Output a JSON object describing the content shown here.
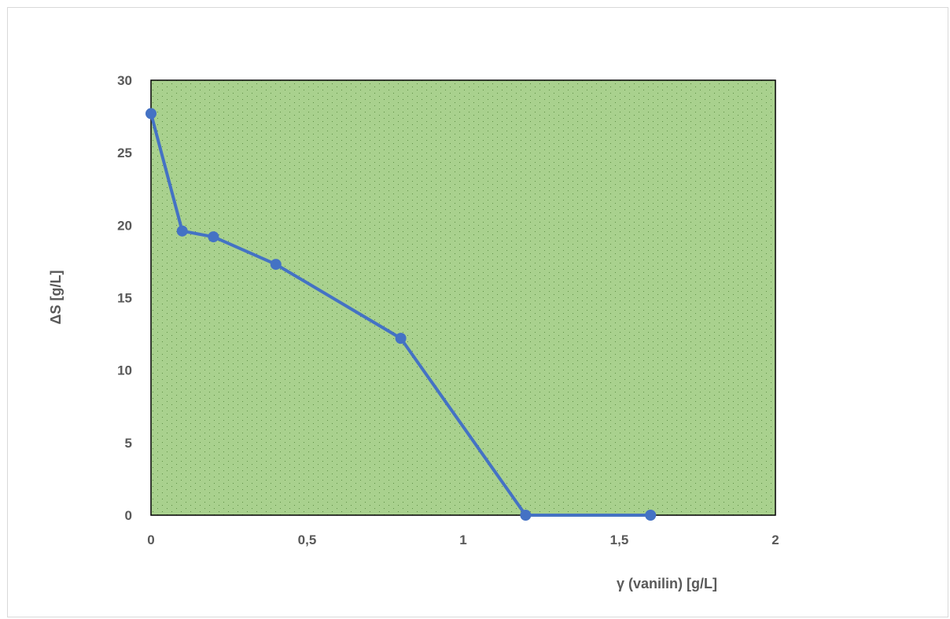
{
  "chart_data": {
    "type": "line",
    "title": "",
    "xlabel": "γ (vanilin) [g/L]",
    "ylabel": "ΔS [g/L]",
    "xlim": [
      0,
      2
    ],
    "ylim": [
      0,
      30
    ],
    "x_ticks": [
      0,
      0.5,
      1,
      1.5,
      2
    ],
    "x_tick_labels": [
      "0",
      "0,5",
      "1",
      "1,5",
      "2"
    ],
    "y_ticks": [
      0,
      5,
      10,
      15,
      20,
      25,
      30
    ],
    "y_tick_labels": [
      "0",
      "5",
      "10",
      "15",
      "20",
      "25",
      "30"
    ],
    "grid": false,
    "legend": "none",
    "plot_background": "dotted-green",
    "colors": {
      "plot_fill": "#a9d18e",
      "plot_dots": "#5e8f45",
      "plot_border": "#000000",
      "series": "#4472c4",
      "text": "#595959"
    },
    "series": [
      {
        "x": [
          0,
          0.1,
          0.2,
          0.4,
          0.8,
          1.2,
          1.6
        ],
        "y": [
          27.7,
          19.6,
          19.2,
          17.3,
          12.2,
          0,
          0
        ]
      }
    ]
  }
}
